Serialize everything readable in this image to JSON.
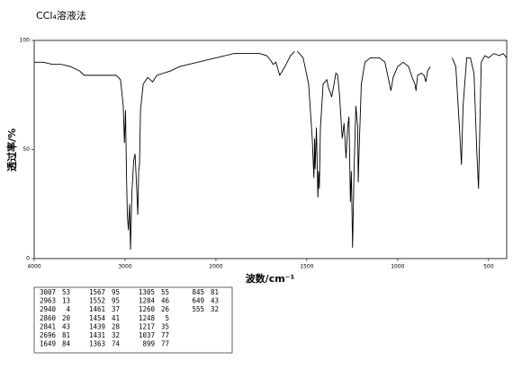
{
  "chart_data": {
    "type": "line",
    "title": "CCl₄溶液法",
    "xlabel": "波数/cm⁻¹",
    "ylabel": "透过率/%",
    "xlim": [
      4000,
      400
    ],
    "x_scale_break": 2000,
    "xticks": [
      4000,
      3000,
      2000,
      1500,
      1000,
      500
    ],
    "ylim": [
      0,
      100
    ],
    "yticks": [
      0,
      50,
      100
    ],
    "color": "#000000",
    "x": [
      4000,
      3900,
      3800,
      3700,
      3600,
      3500,
      3450,
      3400,
      3300,
      3200,
      3100,
      3050,
      3020,
      3007,
      2995,
      2985,
      2975,
      2963,
      2950,
      2940,
      2925,
      2905,
      2890,
      2875,
      2860,
      2850,
      2841,
      2830,
      2800,
      2750,
      2696,
      2650,
      2500,
      2400,
      2300,
      2200,
      2100,
      2000,
      1900,
      1800,
      1760,
      1720,
      1700,
      1685,
      1670,
      1649,
      1620,
      1590,
      1567,
      1560,
      1552,
      1520,
      1490,
      1470,
      1461,
      1457,
      1454,
      1447,
      1439,
      1435,
      1431,
      1425,
      1410,
      1390,
      1380,
      1370,
      1363,
      1350,
      1340,
      1330,
      1320,
      1305,
      1295,
      1284,
      1275,
      1268,
      1260,
      1255,
      1248,
      1240,
      1230,
      1220,
      1217,
      1212,
      1200,
      1180,
      1150,
      1100,
      1070,
      1050,
      1037,
      1025,
      1000,
      970,
      940,
      920,
      905,
      899,
      890,
      870,
      855,
      845,
      835,
      820,
      760,
      700,
      680,
      660,
      649,
      640,
      620,
      600,
      580,
      565,
      555,
      548,
      540,
      520,
      500,
      470,
      440,
      420,
      400
    ],
    "values": [
      90,
      90,
      89,
      89,
      88,
      86,
      84,
      84,
      84,
      84,
      84,
      82,
      70,
      53,
      68,
      40,
      20,
      13,
      25,
      4,
      30,
      45,
      48,
      35,
      20,
      40,
      43,
      68,
      80,
      83,
      81,
      84,
      86,
      88,
      89,
      90,
      91,
      92,
      94,
      94,
      94,
      93,
      91,
      89,
      90,
      84,
      88,
      93,
      95,
      null,
      95,
      92,
      80,
      55,
      37,
      55,
      41,
      60,
      28,
      40,
      32,
      60,
      80,
      82,
      78,
      76,
      74,
      80,
      85,
      84,
      75,
      55,
      62,
      46,
      60,
      65,
      26,
      40,
      5,
      40,
      70,
      60,
      35,
      50,
      80,
      90,
      92,
      92,
      90,
      82,
      77,
      83,
      88,
      90,
      88,
      83,
      80,
      77,
      84,
      85,
      84,
      81,
      86,
      88,
      null,
      92,
      88,
      60,
      43,
      70,
      92,
      92,
      85,
      50,
      32,
      60,
      90,
      93,
      92,
      94,
      93,
      94,
      92
    ]
  },
  "peak_table": [
    [
      3007,
      53
    ],
    [
      2963,
      13
    ],
    [
      2940,
      4
    ],
    [
      2860,
      20
    ],
    [
      2841,
      43
    ],
    [
      2696,
      81
    ],
    [
      1649,
      84
    ],
    [
      1567,
      95
    ],
    [
      1552,
      95
    ],
    [
      1461,
      37
    ],
    [
      1454,
      41
    ],
    [
      1439,
      28
    ],
    [
      1431,
      32
    ],
    [
      1363,
      74
    ],
    [
      1305,
      55
    ],
    [
      1284,
      46
    ],
    [
      1260,
      26
    ],
    [
      1248,
      5
    ],
    [
      1217,
      35
    ],
    [
      1037,
      77
    ],
    [
      899,
      77
    ],
    [
      845,
      81
    ],
    [
      649,
      43
    ],
    [
      555,
      32
    ]
  ]
}
